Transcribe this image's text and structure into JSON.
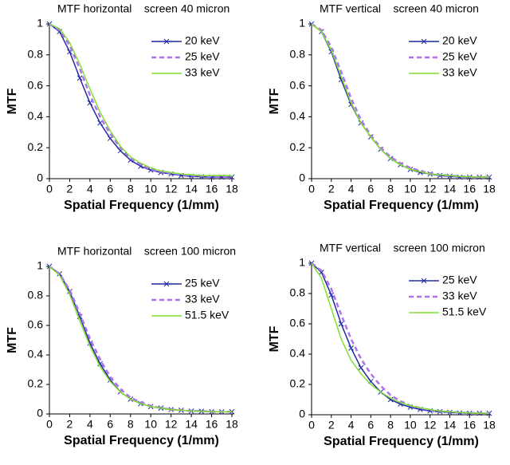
{
  "chart_data": [
    {
      "type": "line",
      "title": "MTF horizontal    screen 40 micron",
      "xlabel": "Spatial Frequency (1/mm)",
      "ylabel": "MTF",
      "x": [
        0,
        1,
        2,
        3,
        4,
        5,
        6,
        7,
        8,
        9,
        10,
        11,
        12,
        13,
        14,
        15,
        16,
        17,
        18
      ],
      "xlim": [
        0,
        18
      ],
      "xticks": [
        0,
        2,
        4,
        6,
        8,
        10,
        12,
        14,
        16,
        18
      ],
      "ylim": [
        0,
        1
      ],
      "yticks": [
        0,
        0.2,
        0.4,
        0.6,
        0.8,
        1
      ],
      "series": [
        {
          "name": "20 keV",
          "color": "#1f2aa0",
          "style": "solid",
          "marker": "x",
          "values": [
            1,
            0.95,
            0.82,
            0.65,
            0.49,
            0.36,
            0.26,
            0.18,
            0.12,
            0.08,
            0.055,
            0.04,
            0.03,
            0.02,
            0.015,
            0.012,
            0.01,
            0.01,
            0.01
          ]
        },
        {
          "name": "25 keV",
          "color": "#b070f0",
          "style": "dashed",
          "values": [
            1,
            0.96,
            0.86,
            0.71,
            0.54,
            0.4,
            0.29,
            0.2,
            0.13,
            0.09,
            0.06,
            0.045,
            0.035,
            0.025,
            0.02,
            0.018,
            0.015,
            0.015,
            0.015
          ]
        },
        {
          "name": "33 keV",
          "color": "#80e030",
          "style": "solid",
          "values": [
            1,
            0.97,
            0.88,
            0.74,
            0.58,
            0.43,
            0.31,
            0.21,
            0.14,
            0.1,
            0.07,
            0.05,
            0.04,
            0.03,
            0.025,
            0.02,
            0.02,
            0.02,
            0.02
          ]
        }
      ]
    },
    {
      "type": "line",
      "title": "MTF vertical    screen 40 micron",
      "xlabel": "Spatial Frequency (1/mm)",
      "ylabel": "MTF",
      "x": [
        0,
        1,
        2,
        3,
        4,
        5,
        6,
        7,
        8,
        9,
        10,
        11,
        12,
        13,
        14,
        15,
        16,
        17,
        18
      ],
      "xlim": [
        0,
        18
      ],
      "xticks": [
        0,
        2,
        4,
        6,
        8,
        10,
        12,
        14,
        16,
        18
      ],
      "ylim": [
        0,
        1
      ],
      "yticks": [
        0,
        0.2,
        0.4,
        0.6,
        0.8,
        1
      ],
      "series": [
        {
          "name": "20 keV",
          "color": "#1f2aa0",
          "style": "solid",
          "marker": "x",
          "values": [
            1,
            0.95,
            0.82,
            0.64,
            0.48,
            0.36,
            0.27,
            0.19,
            0.13,
            0.09,
            0.06,
            0.04,
            0.03,
            0.02,
            0.015,
            0.01,
            0.01,
            0.01,
            0.01
          ]
        },
        {
          "name": "25 keV",
          "color": "#b070f0",
          "style": "dashed",
          "values": [
            1,
            0.96,
            0.85,
            0.69,
            0.52,
            0.38,
            0.28,
            0.2,
            0.14,
            0.1,
            0.07,
            0.05,
            0.035,
            0.025,
            0.02,
            0.015,
            0.012,
            0.01,
            0.01
          ]
        },
        {
          "name": "33 keV",
          "color": "#80e030",
          "style": "solid",
          "values": [
            1,
            0.95,
            0.83,
            0.66,
            0.49,
            0.36,
            0.27,
            0.19,
            0.13,
            0.09,
            0.06,
            0.045,
            0.03,
            0.025,
            0.02,
            0.015,
            0.012,
            0.01,
            0.01
          ]
        }
      ]
    },
    {
      "type": "line",
      "title": "MTF horizontal    screen 100 micron",
      "xlabel": "Spatial Frequency (1/mm)",
      "ylabel": "MTF",
      "x": [
        0,
        1,
        2,
        3,
        4,
        5,
        6,
        7,
        8,
        9,
        10,
        11,
        12,
        13,
        14,
        15,
        16,
        17,
        18
      ],
      "xlim": [
        0,
        18
      ],
      "xticks": [
        0,
        2,
        4,
        6,
        8,
        10,
        12,
        14,
        16,
        18
      ],
      "ylim": [
        0,
        1
      ],
      "yticks": [
        0,
        0.2,
        0.4,
        0.6,
        0.8,
        1
      ],
      "series": [
        {
          "name": "25 keV",
          "color": "#1f2aa0",
          "style": "solid",
          "marker": "x",
          "values": [
            1,
            0.95,
            0.83,
            0.66,
            0.48,
            0.34,
            0.23,
            0.15,
            0.1,
            0.07,
            0.05,
            0.04,
            0.03,
            0.025,
            0.02,
            0.018,
            0.015,
            0.015,
            0.015
          ]
        },
        {
          "name": "33 keV",
          "color": "#b070f0",
          "style": "dashed",
          "values": [
            1,
            0.95,
            0.84,
            0.68,
            0.51,
            0.37,
            0.25,
            0.17,
            0.11,
            0.08,
            0.055,
            0.04,
            0.03,
            0.025,
            0.02,
            0.02,
            0.015,
            0.015,
            0.015
          ]
        },
        {
          "name": "51.5 keV",
          "color": "#80e030",
          "style": "solid",
          "values": [
            1,
            0.94,
            0.81,
            0.63,
            0.46,
            0.32,
            0.22,
            0.15,
            0.1,
            0.07,
            0.05,
            0.04,
            0.03,
            0.025,
            0.02,
            0.018,
            0.015,
            0.015,
            0.015
          ]
        }
      ]
    },
    {
      "type": "line",
      "title": "MTF vertical    screen 100 micron",
      "xlabel": "Spatial Frequency (1/mm)",
      "ylabel": "MTF",
      "x": [
        0,
        1,
        2,
        3,
        4,
        5,
        6,
        7,
        8,
        9,
        10,
        11,
        12,
        13,
        14,
        15,
        16,
        17,
        18
      ],
      "xlim": [
        0,
        18
      ],
      "xticks": [
        0,
        2,
        4,
        6,
        8,
        10,
        12,
        14,
        16,
        18
      ],
      "ylim": [
        0,
        1
      ],
      "yticks": [
        0,
        0.2,
        0.4,
        0.6,
        0.8,
        1
      ],
      "series": [
        {
          "name": "25 keV",
          "color": "#1f2aa0",
          "style": "solid",
          "marker": "x",
          "values": [
            1,
            0.94,
            0.79,
            0.6,
            0.44,
            0.31,
            0.22,
            0.15,
            0.1,
            0.07,
            0.05,
            0.035,
            0.025,
            0.02,
            0.015,
            0.012,
            0.01,
            0.01,
            0.01
          ]
        },
        {
          "name": "33 keV",
          "color": "#b070f0",
          "style": "dashed",
          "values": [
            1,
            0.95,
            0.83,
            0.66,
            0.5,
            0.37,
            0.27,
            0.19,
            0.13,
            0.09,
            0.06,
            0.045,
            0.03,
            0.025,
            0.02,
            0.015,
            0.012,
            0.01,
            0.01
          ]
        },
        {
          "name": "51.5 keV",
          "color": "#80e030",
          "style": "solid",
          "values": [
            1,
            0.9,
            0.7,
            0.5,
            0.36,
            0.27,
            0.2,
            0.15,
            0.11,
            0.08,
            0.06,
            0.045,
            0.035,
            0.025,
            0.02,
            0.015,
            0.012,
            0.01,
            0.01
          ]
        }
      ]
    }
  ]
}
